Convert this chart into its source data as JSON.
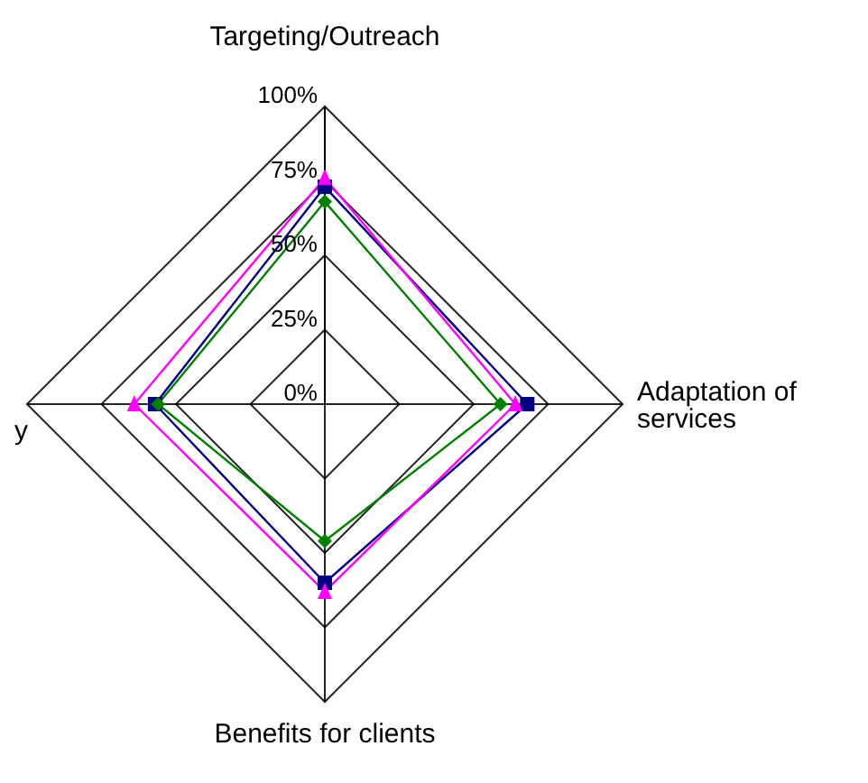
{
  "chart_data": {
    "type": "radar",
    "categories": [
      "Targeting/Outreach",
      "Adaptation of services",
      "Benefits for clients",
      "y"
    ],
    "series": [
      {
        "color": "#000080",
        "marker": "square",
        "values": [
          73,
          68,
          60,
          57
        ]
      },
      {
        "color": "#ff00ff",
        "marker": "triangle",
        "values": [
          76,
          64,
          63,
          64
        ]
      },
      {
        "color": "#008000",
        "marker": "diamond",
        "values": [
          68,
          59,
          46,
          56
        ]
      }
    ],
    "ylim": [
      0,
      100
    ],
    "yticks": [
      {
        "value": 0,
        "label": "0%"
      },
      {
        "value": 25,
        "label": "25%"
      },
      {
        "value": 50,
        "label": "50%"
      },
      {
        "value": 75,
        "label": "75%"
      },
      {
        "value": 100,
        "label": "100%"
      }
    ],
    "grid": true,
    "legend": false
  }
}
